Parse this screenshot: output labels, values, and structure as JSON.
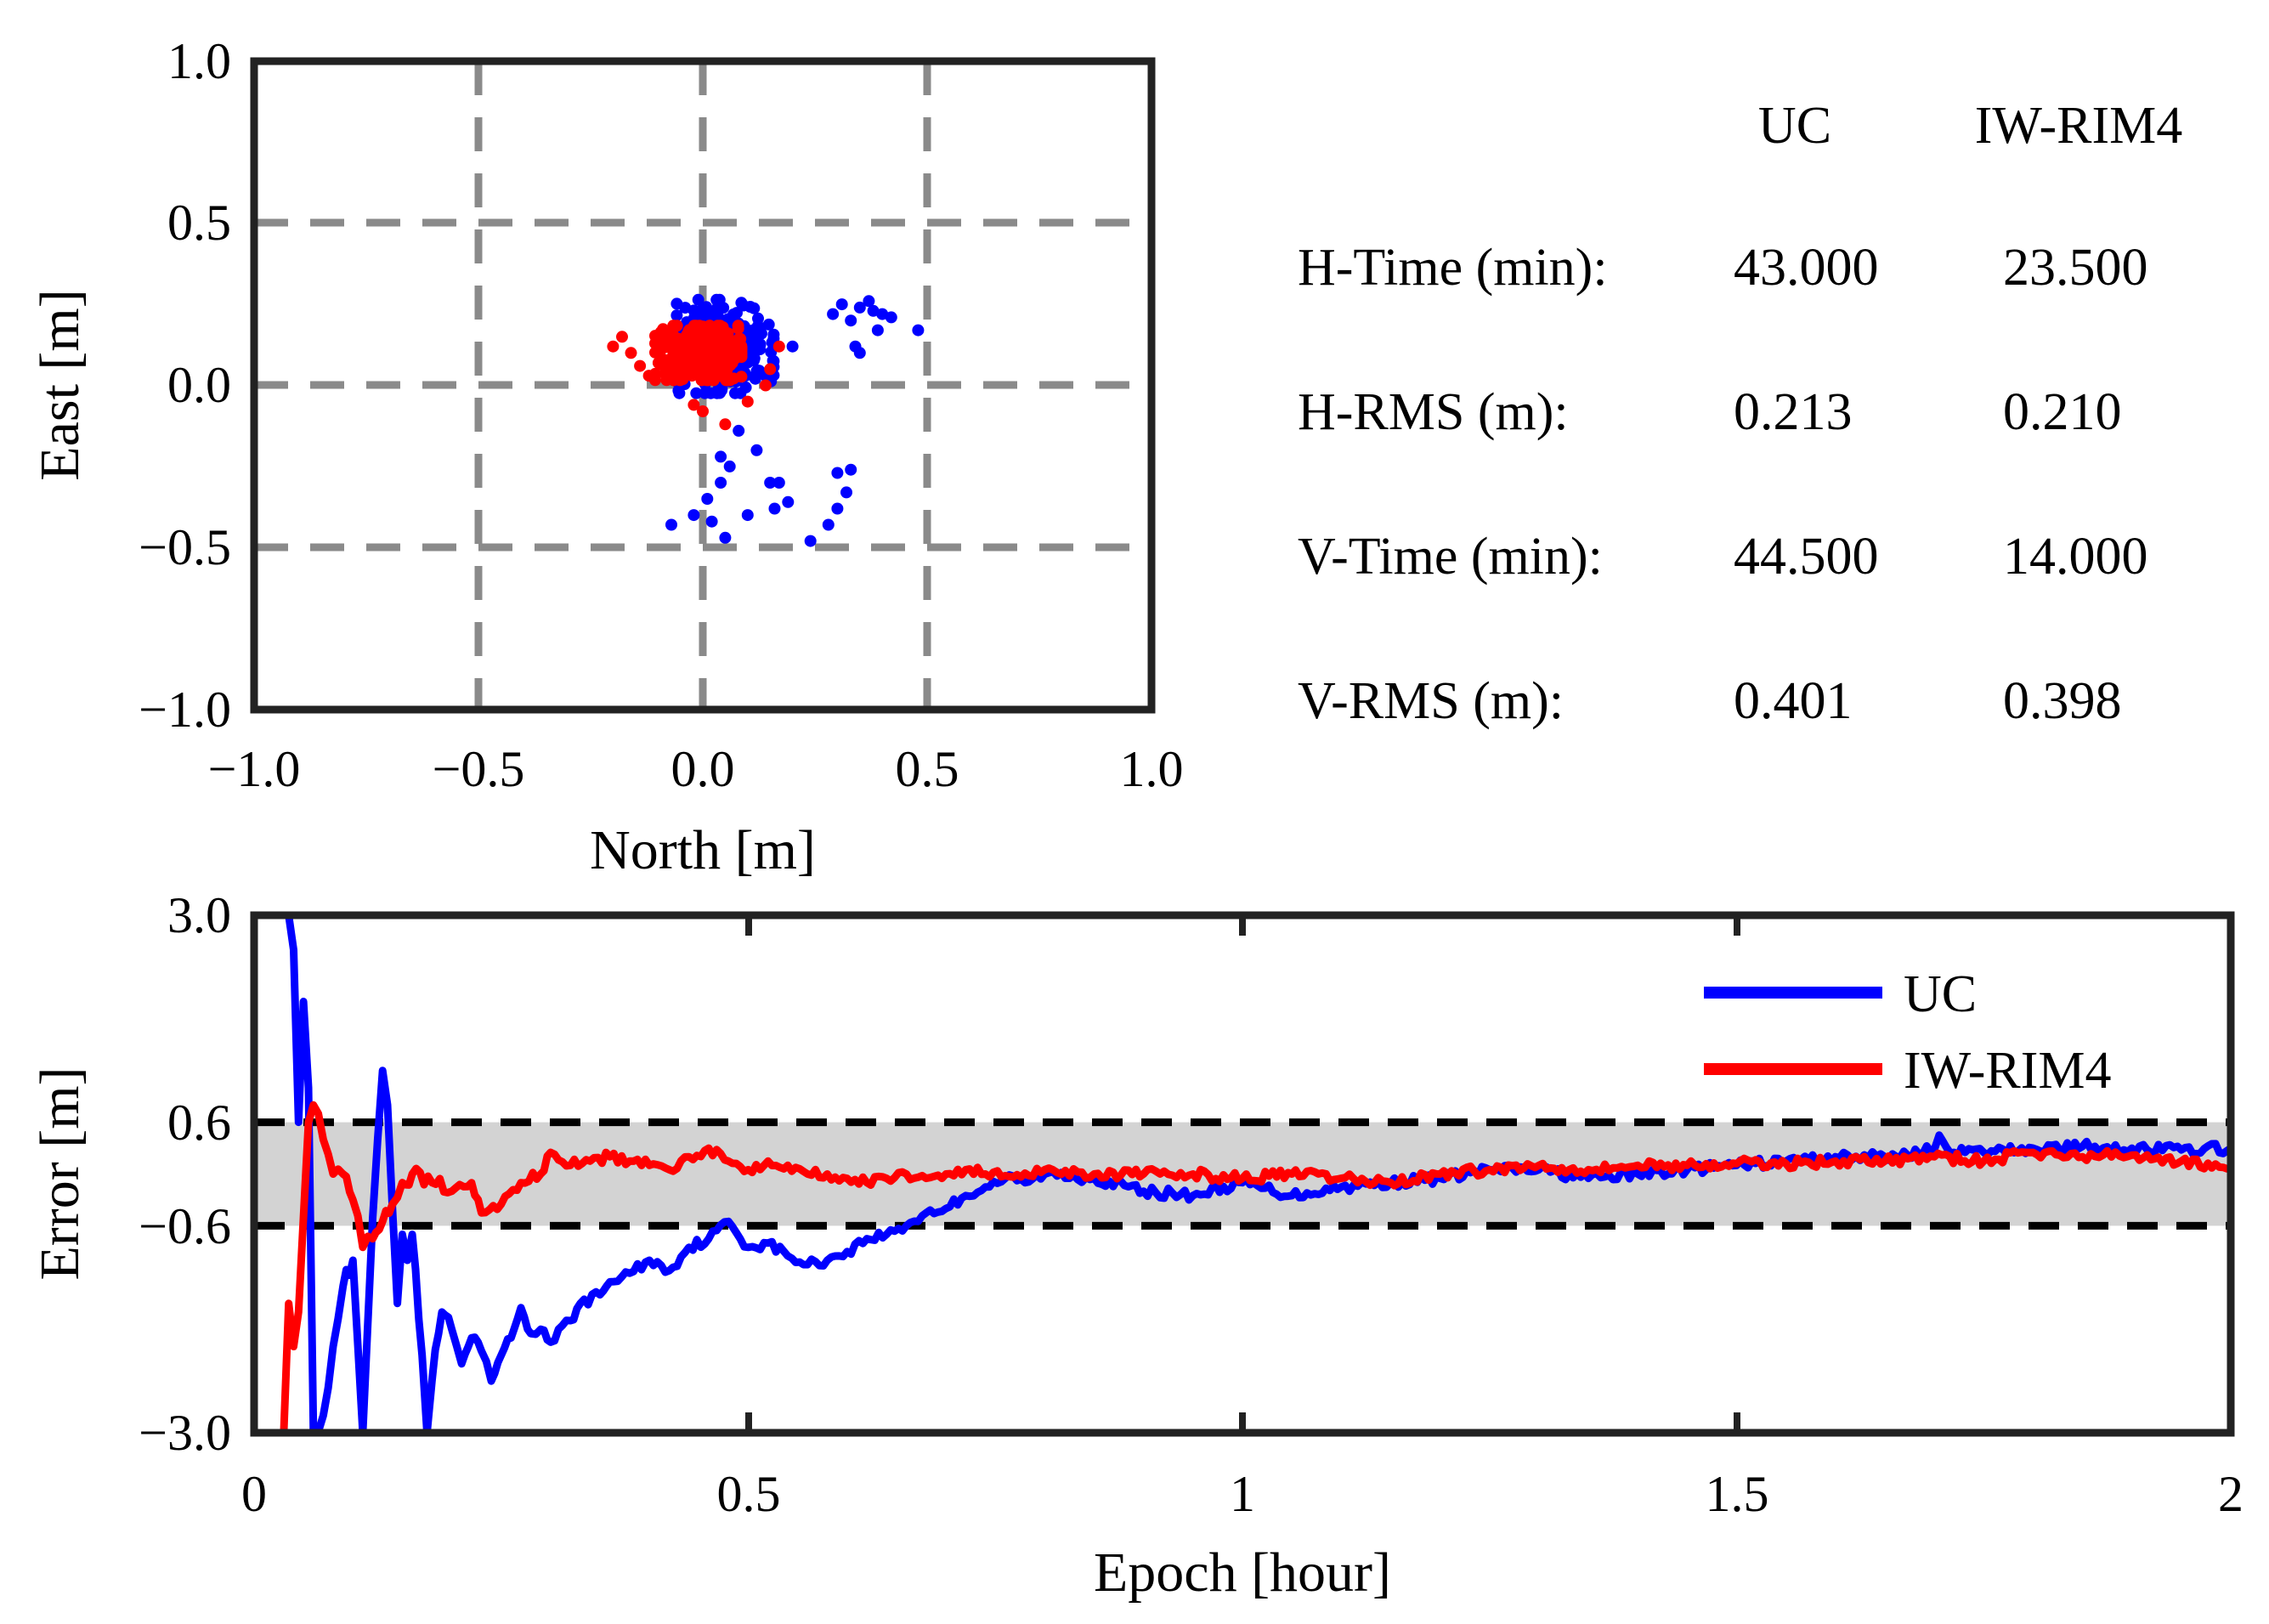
{
  "chart_data": [
    {
      "type": "scatter",
      "xlabel": "North [m]",
      "ylabel": "East [m]",
      "xlim": [
        -1.0,
        1.0
      ],
      "ylim": [
        -1.0,
        1.0
      ],
      "xticks": [
        "−1.0",
        "−0.5",
        "0.0",
        "0.5",
        "1.0"
      ],
      "yticks": [
        "1.0",
        "0.5",
        "0.0",
        "−0.5",
        "−1.0"
      ],
      "grid": true,
      "series": [
        {
          "name": "UC",
          "color": "#0000ff",
          "cluster": {
            "center": [
              0.05,
              0.12
            ],
            "spread": [
              0.09,
              0.12
            ],
            "count": 260
          },
          "outliers": [
            [
              0.29,
              0.22
            ],
            [
              0.31,
              0.25
            ],
            [
              0.33,
              0.2
            ],
            [
              0.35,
              0.24
            ],
            [
              0.37,
              0.26
            ],
            [
              0.38,
              0.23
            ],
            [
              0.4,
              0.22
            ],
            [
              0.42,
              0.21
            ],
            [
              0.39,
              0.17
            ],
            [
              0.48,
              0.17
            ],
            [
              0.34,
              0.12
            ],
            [
              0.35,
              0.1
            ],
            [
              0.3,
              -0.27
            ],
            [
              0.32,
              -0.33
            ],
            [
              0.3,
              -0.38
            ],
            [
              0.28,
              -0.43
            ],
            [
              0.33,
              -0.26
            ],
            [
              0.24,
              -0.48
            ],
            [
              0.05,
              -0.47
            ],
            [
              0.02,
              -0.42
            ],
            [
              -0.02,
              -0.4
            ],
            [
              -0.07,
              -0.43
            ],
            [
              0.1,
              -0.4
            ],
            [
              0.15,
              -0.3
            ],
            [
              0.19,
              -0.36
            ],
            [
              0.17,
              -0.3
            ],
            [
              0.04,
              -0.3
            ],
            [
              0.06,
              -0.25
            ],
            [
              0.12,
              -0.2
            ],
            [
              0.08,
              -0.14
            ],
            [
              0.16,
              -0.38
            ],
            [
              0.01,
              -0.35
            ],
            [
              0.04,
              -0.22
            ],
            [
              0.2,
              0.12
            ]
          ]
        },
        {
          "name": "IW-RIM4",
          "color": "#ff0000",
          "cluster": {
            "center": [
              -0.01,
              0.1
            ],
            "spread": [
              0.08,
              0.07
            ],
            "count": 420
          },
          "outliers": [
            [
              -0.2,
              0.12
            ],
            [
              -0.18,
              0.15
            ],
            [
              -0.16,
              0.1
            ],
            [
              -0.14,
              0.06
            ],
            [
              -0.12,
              0.03
            ],
            [
              0.15,
              0.05
            ],
            [
              0.17,
              0.12
            ],
            [
              0.14,
              0.0
            ],
            [
              0.1,
              -0.05
            ],
            [
              0.05,
              -0.12
            ],
            [
              -0.02,
              -0.06
            ],
            [
              0.0,
              -0.08
            ]
          ]
        }
      ]
    },
    {
      "type": "line",
      "xlabel": "Epoch [hour]",
      "ylabel": "Error [m]",
      "xlim": [
        0,
        2
      ],
      "ylim": [
        -3.0,
        3.0
      ],
      "xticks": [
        "0",
        "0.5",
        "1",
        "1.5",
        "2"
      ],
      "yticks": [
        "3.0",
        "0.6",
        "−0.6",
        "−3.0"
      ],
      "threshold_band": [
        -0.6,
        0.6
      ],
      "series": [
        {
          "name": "UC",
          "color": "#0000ff",
          "points": [
            [
              0.035,
              3.0
            ],
            [
              0.04,
              2.6
            ],
            [
              0.045,
              0.6
            ],
            [
              0.05,
              2.0
            ],
            [
              0.055,
              1.0
            ],
            [
              0.06,
              -3.0
            ],
            [
              0.07,
              -2.8
            ],
            [
              0.08,
              -2.0
            ],
            [
              0.09,
              -1.3
            ],
            [
              0.1,
              -1.0
            ],
            [
              0.11,
              -3.0
            ],
            [
              0.12,
              -0.5
            ],
            [
              0.125,
              0.4
            ],
            [
              0.13,
              1.2
            ],
            [
              0.135,
              0.8
            ],
            [
              0.14,
              -0.4
            ],
            [
              0.145,
              -1.5
            ],
            [
              0.15,
              -0.7
            ],
            [
              0.155,
              -1.0
            ],
            [
              0.16,
              -0.7
            ],
            [
              0.17,
              -2.1
            ],
            [
              0.175,
              -3.0
            ],
            [
              0.18,
              -2.4
            ],
            [
              0.19,
              -1.6
            ],
            [
              0.2,
              -1.8
            ],
            [
              0.21,
              -2.2
            ],
            [
              0.22,
              -1.9
            ],
            [
              0.23,
              -2.05
            ],
            [
              0.24,
              -2.4
            ],
            [
              0.25,
              -2.1
            ],
            [
              0.26,
              -1.9
            ],
            [
              0.27,
              -1.55
            ],
            [
              0.28,
              -1.85
            ],
            [
              0.29,
              -1.8
            ],
            [
              0.3,
              -1.95
            ],
            [
              0.32,
              -1.7
            ],
            [
              0.33,
              -1.5
            ],
            [
              0.35,
              -1.4
            ],
            [
              0.36,
              -1.25
            ],
            [
              0.38,
              -1.15
            ],
            [
              0.4,
              -1.0
            ],
            [
              0.42,
              -1.12
            ],
            [
              0.44,
              -0.85
            ],
            [
              0.46,
              -0.75
            ],
            [
              0.48,
              -0.55
            ],
            [
              0.5,
              -0.85
            ],
            [
              0.52,
              -0.8
            ],
            [
              0.54,
              -0.95
            ],
            [
              0.56,
              -1.05
            ],
            [
              0.58,
              -1.0
            ],
            [
              0.6,
              -0.9
            ],
            [
              0.62,
              -0.75
            ],
            [
              0.64,
              -0.7
            ],
            [
              0.66,
              -0.6
            ],
            [
              0.68,
              -0.45
            ],
            [
              0.7,
              -0.4
            ],
            [
              0.72,
              -0.25
            ],
            [
              0.74,
              -0.15
            ],
            [
              0.76,
              -0.05
            ],
            [
              0.78,
              -0.1
            ],
            [
              0.8,
              0.0
            ],
            [
              0.85,
              -0.05
            ],
            [
              0.9,
              -0.2
            ],
            [
              0.95,
              -0.25
            ],
            [
              1.0,
              -0.1
            ],
            [
              1.05,
              -0.25
            ],
            [
              1.1,
              -0.15
            ],
            [
              1.15,
              -0.1
            ],
            [
              1.2,
              -0.05
            ],
            [
              1.25,
              0.05
            ],
            [
              1.3,
              0.05
            ],
            [
              1.35,
              -0.05
            ],
            [
              1.4,
              0.0
            ],
            [
              1.45,
              0.05
            ],
            [
              1.5,
              0.1
            ],
            [
              1.55,
              0.15
            ],
            [
              1.6,
              0.2
            ],
            [
              1.65,
              0.2
            ],
            [
              1.7,
              0.28
            ],
            [
              1.705,
              0.45
            ],
            [
              1.72,
              0.25
            ],
            [
              1.75,
              0.25
            ],
            [
              1.8,
              0.3
            ],
            [
              1.85,
              0.32
            ],
            [
              1.9,
              0.3
            ],
            [
              1.95,
              0.28
            ],
            [
              2.0,
              0.3
            ]
          ]
        },
        {
          "name": "IW-RIM4",
          "color": "#ff0000",
          "points": [
            [
              0.03,
              -3.0
            ],
            [
              0.035,
              -1.5
            ],
            [
              0.04,
              -2.0
            ],
            [
              0.045,
              -1.6
            ],
            [
              0.05,
              -0.5
            ],
            [
              0.055,
              0.6
            ],
            [
              0.06,
              0.8
            ],
            [
              0.065,
              0.7
            ],
            [
              0.07,
              0.4
            ],
            [
              0.08,
              0.0
            ],
            [
              0.09,
              0.0
            ],
            [
              0.1,
              -0.3
            ],
            [
              0.11,
              -0.85
            ],
            [
              0.12,
              -0.75
            ],
            [
              0.13,
              -0.55
            ],
            [
              0.14,
              -0.35
            ],
            [
              0.15,
              -0.1
            ],
            [
              0.16,
              0.0
            ],
            [
              0.18,
              -0.1
            ],
            [
              0.2,
              -0.2
            ],
            [
              0.22,
              -0.1
            ],
            [
              0.23,
              -0.45
            ],
            [
              0.25,
              -0.35
            ],
            [
              0.27,
              -0.1
            ],
            [
              0.29,
              0.0
            ],
            [
              0.3,
              0.25
            ],
            [
              0.32,
              0.1
            ],
            [
              0.34,
              0.15
            ],
            [
              0.36,
              0.2
            ],
            [
              0.38,
              0.15
            ],
            [
              0.4,
              0.1
            ],
            [
              0.42,
              0.05
            ],
            [
              0.44,
              0.2
            ],
            [
              0.46,
              0.3
            ],
            [
              0.48,
              0.15
            ],
            [
              0.5,
              0.05
            ],
            [
              0.52,
              0.15
            ],
            [
              0.54,
              0.1
            ],
            [
              0.56,
              0.0
            ],
            [
              0.58,
              0.0
            ],
            [
              0.6,
              -0.05
            ],
            [
              0.62,
              -0.1
            ],
            [
              0.64,
              -0.05
            ],
            [
              0.66,
              0.0
            ],
            [
              0.68,
              -0.05
            ],
            [
              0.7,
              0.0
            ],
            [
              0.72,
              0.05
            ],
            [
              0.74,
              0.0
            ],
            [
              0.76,
              -0.02
            ],
            [
              0.8,
              0.05
            ],
            [
              0.85,
              0.0
            ],
            [
              0.9,
              0.0
            ],
            [
              0.95,
              0.0
            ],
            [
              1.0,
              -0.05
            ],
            [
              1.05,
              0.0
            ],
            [
              1.1,
              -0.05
            ],
            [
              1.15,
              -0.1
            ],
            [
              1.2,
              0.0
            ],
            [
              1.25,
              0.05
            ],
            [
              1.3,
              0.1
            ],
            [
              1.35,
              0.05
            ],
            [
              1.4,
              0.1
            ],
            [
              1.45,
              0.1
            ],
            [
              1.5,
              0.12
            ],
            [
              1.55,
              0.12
            ],
            [
              1.6,
              0.15
            ],
            [
              1.65,
              0.15
            ],
            [
              1.7,
              0.2
            ],
            [
              1.75,
              0.15
            ],
            [
              1.8,
              0.25
            ],
            [
              1.85,
              0.2
            ],
            [
              1.9,
              0.22
            ],
            [
              1.95,
              0.15
            ],
            [
              2.0,
              0.05
            ]
          ]
        }
      ],
      "legend": {
        "location": "top-right",
        "entries": [
          "UC",
          "IW-RIM4"
        ]
      }
    }
  ],
  "stats_table": {
    "columns": [
      "UC",
      "IW-RIM4"
    ],
    "rows": [
      {
        "label": "H-Time (min):",
        "uc": "43.000",
        "iw": "23.500"
      },
      {
        "label": "H-RMS (m):",
        "uc": "0.213",
        "iw": "0.210"
      },
      {
        "label": "V-Time (min):",
        "uc": "44.500",
        "iw": "14.000"
      },
      {
        "label": "V-RMS (m):",
        "uc": "0.401",
        "iw": "0.398"
      }
    ]
  }
}
